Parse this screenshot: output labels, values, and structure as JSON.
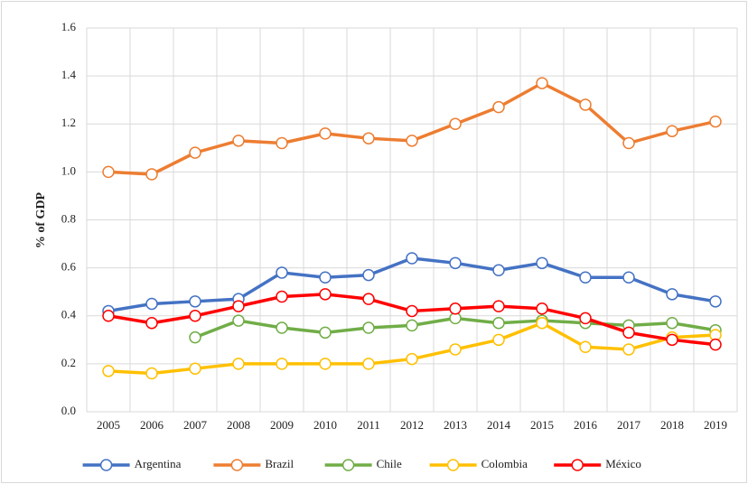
{
  "chart_data": {
    "type": "line",
    "y_label": "% of GDP",
    "categories": [
      "2005",
      "2006",
      "2007",
      "2008",
      "2009",
      "2010",
      "2011",
      "2012",
      "2013",
      "2014",
      "2015",
      "2016",
      "2017",
      "2018",
      "2019"
    ],
    "series": [
      {
        "name": "Argentina",
        "color": "#4472c4",
        "values": [
          0.42,
          0.45,
          0.46,
          0.47,
          0.58,
          0.56,
          0.57,
          0.64,
          0.62,
          0.59,
          0.62,
          0.56,
          0.56,
          0.49,
          0.46
        ]
      },
      {
        "name": "Brazil",
        "color": "#ed7d31",
        "values": [
          1.0,
          0.99,
          1.08,
          1.13,
          1.12,
          1.16,
          1.14,
          1.13,
          1.2,
          1.27,
          1.37,
          1.28,
          1.12,
          1.17,
          1.21
        ]
      },
      {
        "name": "Chile",
        "color": "#70ad47",
        "values": [
          null,
          null,
          0.31,
          0.38,
          0.35,
          0.33,
          0.35,
          0.36,
          0.39,
          0.37,
          0.38,
          0.37,
          0.36,
          0.37,
          0.34
        ]
      },
      {
        "name": "Colombia",
        "color": "#ffc000",
        "values": [
          0.17,
          0.16,
          0.18,
          0.2,
          0.2,
          0.2,
          0.2,
          0.22,
          0.26,
          0.3,
          0.37,
          0.27,
          0.26,
          0.31,
          0.32
        ]
      },
      {
        "name": "México",
        "color": "#ff0000",
        "values": [
          0.4,
          0.37,
          0.4,
          0.44,
          0.48,
          0.49,
          0.47,
          0.42,
          0.43,
          0.44,
          0.43,
          0.39,
          0.33,
          0.3,
          0.28
        ]
      }
    ],
    "ylim": [
      0,
      1.6
    ],
    "yticks": [
      {
        "value": 0,
        "label": "0.0"
      },
      0.2,
      0.4,
      0.6,
      0.8,
      {
        "value": 1,
        "label": "1.0"
      },
      1.2,
      1.4,
      1.6
    ],
    "grid": true,
    "legend": "bottom"
  }
}
